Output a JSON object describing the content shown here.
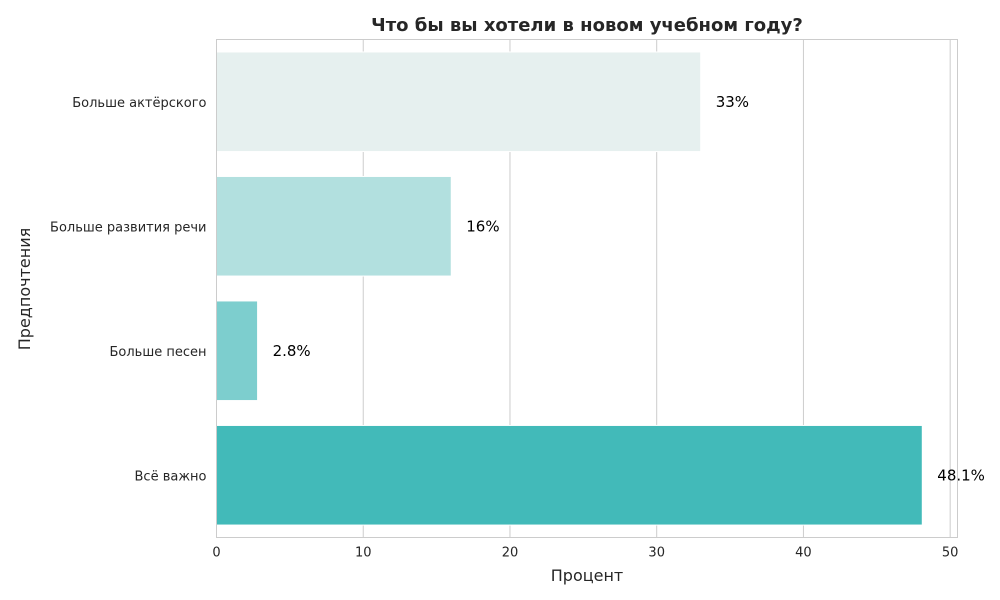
{
  "chart_data": {
    "type": "bar",
    "orientation": "horizontal",
    "title": "Что бы вы хотели в новом учебном году?",
    "xlabel": "Процент",
    "ylabel": "Предпочтения",
    "categories": [
      "Больше актёрского",
      "Больше развития речи",
      "Больше песен",
      "Всё важно"
    ],
    "values": [
      33,
      16,
      2.8,
      48.1
    ],
    "value_labels": [
      "33%",
      "16%",
      "2.8%",
      "48.1%"
    ],
    "colors": [
      "#e6f0ef",
      "#b2e0df",
      "#7dcece",
      "#42bab9"
    ],
    "xlim": [
      0,
      50.5
    ],
    "xticks": [
      0,
      10,
      20,
      30,
      40,
      50
    ],
    "grid": true
  }
}
